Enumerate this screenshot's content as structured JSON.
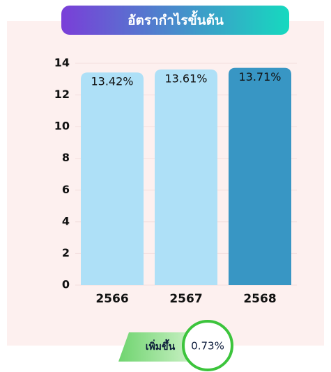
{
  "chart_data": {
    "type": "bar",
    "title": "อัตรากำไรขั้นต้น",
    "categories": [
      "2566",
      "2567",
      "2568"
    ],
    "values": [
      13.42,
      13.61,
      13.71
    ],
    "value_labels": [
      "13.42%",
      "13.61%",
      "13.71%"
    ],
    "colors": [
      "#aee0f7",
      "#aee0f7",
      "#3896c4"
    ],
    "ylim": [
      0,
      14
    ],
    "yticks": [
      0,
      2,
      4,
      6,
      8,
      10,
      12,
      14
    ],
    "grid": true,
    "annotation": {
      "text": "เพิ่มขึ้น",
      "value": 0.73,
      "value_label": "0.73%"
    }
  }
}
